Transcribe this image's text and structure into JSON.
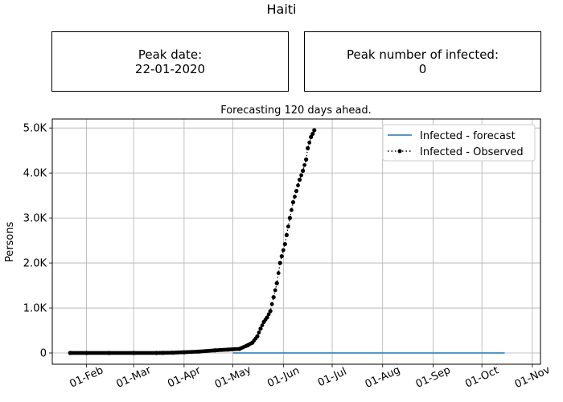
{
  "page_title": "Haiti",
  "peak_date": {
    "label": "Peak date:",
    "value": "22-01-2020"
  },
  "peak_number": {
    "label": "Peak number of infected:",
    "value": "0"
  },
  "chart_data": {
    "type": "line",
    "title": "Forecasting 120 days ahead.",
    "ylabel": "Persons",
    "xlabel": "",
    "x_axis": {
      "type": "date",
      "min": "2020-01-11",
      "max": "2020-11-06",
      "ticks": [
        "2020-02-01",
        "2020-03-01",
        "2020-04-01",
        "2020-05-01",
        "2020-06-01",
        "2020-07-01",
        "2020-08-01",
        "2020-09-01",
        "2020-10-01",
        "2020-11-01"
      ],
      "tick_labels": [
        "01-Feb",
        "01-Mar",
        "01-Apr",
        "01-May",
        "01-Jun",
        "01-Jul",
        "01-Aug",
        "01-Sep",
        "01-Oct",
        "01-Nov"
      ]
    },
    "y_axis": {
      "min": -250,
      "max": 5200,
      "ticks": [
        0,
        1000,
        2000,
        3000,
        4000,
        5000
      ],
      "tick_labels": [
        "0",
        "1.0K",
        "2.0K",
        "3.0K",
        "4.0K",
        "5.0K"
      ]
    },
    "grid": true,
    "legend_position": "top-right",
    "series": [
      {
        "name": "Infected - forecast",
        "color": "#1f77b4",
        "style": "solid",
        "x": [
          "2020-05-01",
          "2020-10-15"
        ],
        "y": [
          0,
          0
        ]
      },
      {
        "name": "Infected - Observed",
        "color": "#000000",
        "style": "dotted-markers",
        "x": [
          "2020-01-22",
          "2020-02-01",
          "2020-02-15",
          "2020-03-01",
          "2020-03-15",
          "2020-03-19",
          "2020-03-25",
          "2020-04-01",
          "2020-04-10",
          "2020-04-20",
          "2020-04-28",
          "2020-05-05",
          "2020-05-10",
          "2020-05-13",
          "2020-05-16",
          "2020-05-18",
          "2020-05-20",
          "2020-05-22",
          "2020-05-24",
          "2020-05-26",
          "2020-05-28",
          "2020-05-30",
          "2020-05-31",
          "2020-06-02",
          "2020-06-03",
          "2020-06-05",
          "2020-06-07",
          "2020-06-09",
          "2020-06-11",
          "2020-06-13",
          "2020-06-15",
          "2020-06-16",
          "2020-06-18",
          "2020-06-19",
          "2020-06-20"
        ],
        "y": [
          0,
          0,
          0,
          0,
          0,
          2,
          6,
          16,
          30,
          58,
          75,
          90,
          170,
          230,
          370,
          540,
          690,
          790,
          930,
          1240,
          1550,
          2000,
          2150,
          2420,
          2620,
          3000,
          3350,
          3600,
          3850,
          4050,
          4300,
          4550,
          4800,
          4870,
          4950
        ]
      }
    ]
  }
}
